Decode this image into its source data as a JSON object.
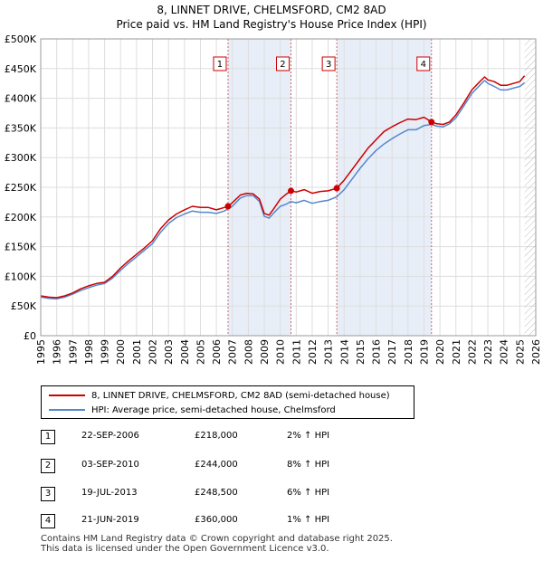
{
  "chart_data": {
    "type": "line",
    "title": "8, LINNET DRIVE, CHELMSFORD, CM2 8AD",
    "subtitle": "Price paid vs. HM Land Registry's House Price Index (HPI)",
    "xlabel": "",
    "ylabel": "",
    "xlim": [
      1995,
      2026
    ],
    "ylim": [
      0,
      500000
    ],
    "y_ticks": [
      0,
      50000,
      100000,
      150000,
      200000,
      250000,
      300000,
      350000,
      400000,
      450000,
      500000
    ],
    "y_tick_labels": [
      "£0",
      "£50K",
      "£100K",
      "£150K",
      "£200K",
      "£250K",
      "£300K",
      "£350K",
      "£400K",
      "£450K",
      "£500K"
    ],
    "x_ticks": [
      1995,
      1996,
      1997,
      1998,
      1999,
      2000,
      2001,
      2002,
      2003,
      2004,
      2005,
      2006,
      2007,
      2008,
      2009,
      2010,
      2011,
      2012,
      2013,
      2014,
      2015,
      2016,
      2017,
      2018,
      2019,
      2020,
      2021,
      2022,
      2023,
      2024,
      2025,
      2026
    ],
    "x_tick_labels": [
      "1995",
      "1996",
      "1997",
      "1998",
      "1999",
      "2000",
      "2001",
      "2002",
      "2003",
      "2004",
      "2005",
      "2006",
      "2007",
      "2008",
      "2009",
      "2010",
      "2011",
      "2012",
      "2013",
      "2014",
      "2015",
      "2016",
      "2017",
      "2018",
      "2019",
      "2020",
      "2021",
      "2022",
      "2023",
      "2024",
      "2025",
      "2026"
    ],
    "grid": true,
    "forecast_start": 2025.3,
    "series": [
      {
        "name": "8, LINNET DRIVE, CHELMSFORD, CM2 8AD (semi-detached house)",
        "color": "#cc0000",
        "x": [
          1995.0,
          1995.5,
          1996.0,
          1996.5,
          1997.0,
          1997.5,
          1998.0,
          1998.5,
          1999.0,
          1999.5,
          2000.0,
          2000.5,
          2001.0,
          2001.5,
          2002.0,
          2002.5,
          2003.0,
          2003.5,
          2004.0,
          2004.5,
          2005.0,
          2005.5,
          2006.0,
          2006.5,
          2006.73,
          2007.0,
          2007.5,
          2007.9,
          2008.3,
          2008.7,
          2009.0,
          2009.3,
          2009.6,
          2010.0,
          2010.4,
          2010.67,
          2011.0,
          2011.5,
          2012.0,
          2012.5,
          2013.0,
          2013.54,
          2014.0,
          2014.5,
          2015.0,
          2015.5,
          2016.0,
          2016.5,
          2017.0,
          2017.5,
          2018.0,
          2018.5,
          2019.0,
          2019.47,
          2019.8,
          2020.2,
          2020.6,
          2021.0,
          2021.5,
          2022.0,
          2022.5,
          2022.8,
          2023.0,
          2023.4,
          2023.8,
          2024.2,
          2024.6,
          2025.0,
          2025.3
        ],
        "values": [
          67000,
          65000,
          64000,
          67000,
          72000,
          79000,
          84000,
          88000,
          90000,
          100000,
          114000,
          126000,
          137000,
          148000,
          160000,
          180000,
          195000,
          205000,
          212000,
          218000,
          216000,
          216000,
          212000,
          216000,
          218000,
          224000,
          237000,
          240000,
          239000,
          230000,
          206000,
          203000,
          214000,
          230000,
          239000,
          244000,
          242000,
          246000,
          240000,
          243000,
          244000,
          248500,
          262000,
          280000,
          298000,
          316000,
          330000,
          344000,
          352000,
          359000,
          365000,
          364000,
          368000,
          360000,
          357000,
          356000,
          360000,
          372000,
          392000,
          414000,
          428000,
          436000,
          431000,
          428000,
          422000,
          422000,
          425000,
          428000,
          438000
        ]
      },
      {
        "name": "HPI: Average price, semi-detached house, Chelmsford",
        "color": "#5588cc",
        "x": [
          1995.0,
          1995.5,
          1996.0,
          1996.5,
          1997.0,
          1997.5,
          1998.0,
          1998.5,
          1999.0,
          1999.5,
          2000.0,
          2000.5,
          2001.0,
          2001.5,
          2002.0,
          2002.5,
          2003.0,
          2003.5,
          2004.0,
          2004.5,
          2005.0,
          2005.5,
          2006.0,
          2006.5,
          2007.0,
          2007.5,
          2007.9,
          2008.3,
          2008.7,
          2009.0,
          2009.3,
          2009.6,
          2010.0,
          2010.4,
          2010.67,
          2011.0,
          2011.5,
          2012.0,
          2012.5,
          2013.0,
          2013.54,
          2014.0,
          2014.5,
          2015.0,
          2015.5,
          2016.0,
          2016.5,
          2017.0,
          2017.5,
          2018.0,
          2018.5,
          2019.0,
          2019.47,
          2019.8,
          2020.2,
          2020.6,
          2021.0,
          2021.5,
          2022.0,
          2022.5,
          2022.8,
          2023.0,
          2023.4,
          2023.8,
          2024.2,
          2024.6,
          2025.0,
          2025.3
        ],
        "values": [
          65000,
          63000,
          62000,
          65000,
          70000,
          76000,
          81000,
          85000,
          88000,
          97000,
          110000,
          122000,
          133000,
          144000,
          155000,
          174000,
          189000,
          199000,
          205000,
          210000,
          208000,
          208000,
          206000,
          210000,
          218000,
          232000,
          236000,
          236000,
          226000,
          201000,
          198000,
          207000,
          218000,
          222000,
          226000,
          224000,
          228000,
          223000,
          226000,
          228000,
          234000,
          246000,
          264000,
          282000,
          298000,
          312000,
          323000,
          332000,
          340000,
          347000,
          347000,
          354000,
          356000,
          353000,
          352000,
          357000,
          367000,
          387000,
          408000,
          422000,
          430000,
          425000,
          420000,
          414000,
          414000,
          417000,
          420000,
          426000
        ]
      }
    ],
    "transactions": [
      {
        "label": "1",
        "x": 2006.73,
        "value": 218000,
        "date": "22-SEP-2006",
        "price": "£218,000",
        "hpi": "2% ↑ HPI"
      },
      {
        "label": "2",
        "x": 2010.67,
        "value": 244000,
        "date": "03-SEP-2010",
        "price": "£244,000",
        "hpi": "8% ↑ HPI"
      },
      {
        "label": "3",
        "x": 2013.54,
        "value": 248500,
        "date": "19-JUL-2013",
        "price": "£248,500",
        "hpi": "6% ↑ HPI"
      },
      {
        "label": "4",
        "x": 2019.47,
        "value": 360000,
        "date": "21-JUN-2019",
        "price": "£360,000",
        "hpi": "1% ↑ HPI"
      }
    ]
  },
  "legend": {
    "property_label": "8, LINNET DRIVE, CHELMSFORD, CM2 8AD (semi-detached house)",
    "hpi_label": "HPI: Average price, semi-detached house, Chelmsford"
  },
  "footer": {
    "line1": "Contains HM Land Registry data © Crown copyright and database right 2025.",
    "line2": "This data is licensed under the Open Government Licence v3.0."
  },
  "colors": {
    "property": "#cc0000",
    "hpi": "#5588cc",
    "grid": "#dddddd",
    "highlight": "#e8eef8",
    "marker_line": "#cc6666"
  }
}
